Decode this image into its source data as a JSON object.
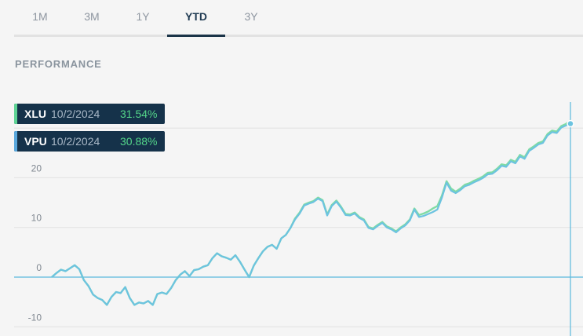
{
  "tabs": {
    "items": [
      {
        "label": "1M",
        "active": false
      },
      {
        "label": "3M",
        "active": false
      },
      {
        "label": "1Y",
        "active": false
      },
      {
        "label": "YTD",
        "active": true
      },
      {
        "label": "3Y",
        "active": false
      }
    ]
  },
  "section": {
    "title": "PERFORMANCE"
  },
  "tooltips": [
    {
      "symbol": "XLU",
      "date": "10/2/2024",
      "value": "31.54%",
      "color": "#5fd495"
    },
    {
      "symbol": "VPU",
      "date": "10/2/2024",
      "value": "30.88%",
      "color": "#5aa8dd"
    }
  ],
  "chart_data": {
    "type": "line",
    "yticks": [
      "20",
      "10",
      "0",
      "-10"
    ],
    "ylim": [
      -10,
      31.54
    ],
    "grid": true,
    "series": [
      {
        "name": "XLU",
        "color": "#7fdba4",
        "values": [
          0,
          0.8,
          1.5,
          1.2,
          1.8,
          2.4,
          1.6,
          -0.6,
          -1.8,
          -3.5,
          -4.2,
          -4.6,
          -5.6,
          -4,
          -3,
          -3.2,
          -2,
          -4.2,
          -5.6,
          -5.1,
          -5.3,
          -4.8,
          -5.6,
          -3.4,
          -3.1,
          -3.4,
          -2.2,
          -0.6,
          0.5,
          1.2,
          0.2,
          1.4,
          1.6,
          2.1,
          2.4,
          3.8,
          4.8,
          4.2,
          3.9,
          3.5,
          4.4,
          3.1,
          1.5,
          0,
          2.3,
          3.8,
          5.2,
          6.1,
          6.5,
          5.7,
          7.8,
          8.5,
          9.9,
          11.8,
          13,
          14.6,
          15,
          15.3,
          16,
          15.5,
          12.6,
          14.5,
          15.4,
          14.2,
          12.7,
          12.6,
          13,
          12.1,
          11.6,
          10.1,
          9.8,
          10.5,
          11.1,
          10.2,
          9.8,
          9.2,
          10,
          10.6,
          11.6,
          13.8,
          12.5,
          12.8,
          13.2,
          13.8,
          14.3,
          16.4,
          19.3,
          17.8,
          17.2,
          17.8,
          18.6,
          18.9,
          19.4,
          19.8,
          20.3,
          21,
          21.1,
          21.8,
          22.7,
          22.5,
          23.6,
          23.2,
          24.6,
          24.1,
          25.7,
          26.3,
          27,
          27.3,
          28.8,
          29.5,
          29.3,
          30.4,
          30.8,
          31.54
        ]
      },
      {
        "name": "VPU",
        "color": "#6cc3e0",
        "values": [
          0,
          0.8,
          1.5,
          1.2,
          1.8,
          2.4,
          1.6,
          -0.6,
          -1.8,
          -3.5,
          -4.2,
          -4.6,
          -5.6,
          -4,
          -3,
          -3.2,
          -2,
          -4.2,
          -5.6,
          -5.1,
          -5.3,
          -4.8,
          -5.6,
          -3.4,
          -3.1,
          -3.4,
          -2.2,
          -0.6,
          0.5,
          1.2,
          0.2,
          1.4,
          1.6,
          2.1,
          2.4,
          3.8,
          4.8,
          4.2,
          3.9,
          3.5,
          4.4,
          3.1,
          1.5,
          0,
          2.3,
          3.8,
          5.2,
          6.1,
          6.5,
          5.7,
          7.8,
          8.5,
          9.9,
          11.6,
          12.8,
          14.4,
          14.8,
          15.1,
          15.8,
          15.3,
          12.4,
          14.3,
          15.2,
          14,
          12.5,
          12.4,
          12.8,
          11.9,
          11.4,
          9.9,
          9.6,
          10.3,
          10.9,
          10,
          9.6,
          9,
          9.8,
          10.4,
          11.4,
          13.6,
          12.1,
          12.3,
          12.7,
          13.1,
          13.6,
          16,
          19,
          17.4,
          16.9,
          17.5,
          18.3,
          18.6,
          19.1,
          19.5,
          20,
          20.7,
          20.8,
          21.5,
          22.4,
          22.2,
          23.3,
          22.9,
          24.3,
          23.8,
          25.4,
          26,
          26.7,
          27,
          28.5,
          29.2,
          29,
          30.1,
          30.5,
          30.88
        ]
      }
    ]
  }
}
